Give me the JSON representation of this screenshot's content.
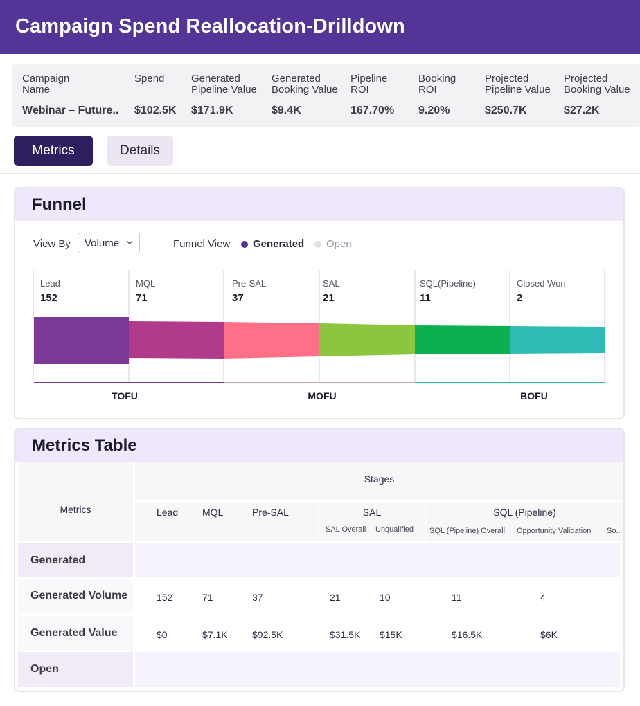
{
  "header": {
    "title": "Campaign Spend Reallocation-Drilldown"
  },
  "summary": [
    {
      "label": "Campaign\nName",
      "value": "Webinar – Future.."
    },
    {
      "label": "Spend",
      "value": "$102.5K"
    },
    {
      "label": "Generated\nPipeline Value",
      "value": "$171.9K"
    },
    {
      "label": "Generated\nBooking Value",
      "value": "$9.4K"
    },
    {
      "label": "Pipeline\nROI",
      "value": "167.70%"
    },
    {
      "label": "Booking\nROI",
      "value": "9.20%"
    },
    {
      "label": "Projected\nPipeline Value",
      "value": "$250.7K"
    },
    {
      "label": "Projected\nBooking Value",
      "value": "$27.2K"
    }
  ],
  "tabs": {
    "metrics": "Metrics",
    "details": "Details"
  },
  "funnel": {
    "title": "Funnel",
    "view_by_label": "View By",
    "view_by_value": "Volume",
    "funnel_view_label": "Funnel View",
    "legend": [
      {
        "label": "Generated",
        "color": "#523596",
        "active": true
      },
      {
        "label": "Open",
        "color": "#e2e0e8",
        "active": false
      }
    ],
    "stages": [
      {
        "name": "Lead",
        "value": "152",
        "color": "#7b3a96"
      },
      {
        "name": "MQL",
        "value": "71",
        "color": "#b03a8c"
      },
      {
        "name": "Pre-SAL",
        "value": "37",
        "color": "#ff7088"
      },
      {
        "name": "SAL",
        "value": "21",
        "color": "#8cc63f"
      },
      {
        "name": "SQL(Pipeline)",
        "value": "11",
        "color": "#0bb04f"
      },
      {
        "name": "Closed Won",
        "value": "2",
        "color": "#2ebab5"
      }
    ],
    "groups": [
      {
        "label": "TOFU",
        "color": "#7b3a96"
      },
      {
        "label": "MOFU",
        "color": "#c9b9d0"
      },
      {
        "label": "BOFU",
        "color": "#2ebab5"
      }
    ]
  },
  "metrics_table": {
    "title": "Metrics Table",
    "metrics_header": "Metrics",
    "stages_header": "Stages",
    "columns": {
      "lead": "Lead",
      "mql": "MQL",
      "pre_sal": "Pre-SAL",
      "sal": "SAL",
      "sal_overall": "SAL Overall",
      "unqualified": "Unqualified",
      "sql": "SQL (Pipeline)",
      "sql_overall": "SQL (Pipeline) Overall",
      "opp_validation": "Opportunity Validation",
      "so": "So.."
    },
    "sections": {
      "generated": "Generated",
      "open": "Open"
    },
    "rows": [
      {
        "label": "Generated Volume",
        "values": [
          "152",
          "71",
          "37",
          "21",
          "10",
          "11",
          "4"
        ]
      },
      {
        "label": "Generated Value",
        "values": [
          "$0",
          "$7.1K",
          "$92.5K",
          "$31.5K",
          "$15K",
          "$16.5K",
          "$6K"
        ]
      }
    ]
  }
}
